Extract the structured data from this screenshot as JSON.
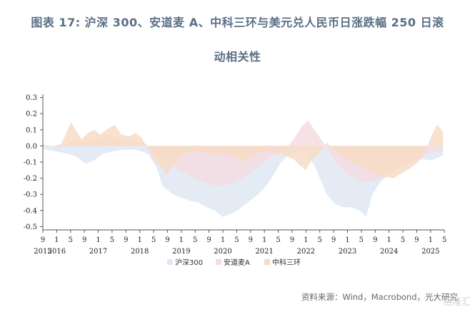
{
  "title_line1": "图表 17:    沪深 300、安道麦 A、中科三环与美元兑人民币日涨跌幅 250 日滚",
  "title_line2": "动相关性",
  "source": "资料来源：Wind，Macrobond，光大研究",
  "watermark": "格隆汇",
  "chart_data": {
    "type": "area",
    "y_ticks": [
      "0.3",
      "0.2",
      "0.1",
      "0.0",
      "-0.1",
      "-0.2",
      "-0.3",
      "-0.4",
      "-0.5"
    ],
    "ylim": [
      -0.52,
      0.32
    ],
    "x_tick_months": [
      "9",
      "1",
      "5",
      "9",
      "1",
      "5",
      "9",
      "1",
      "5",
      "9",
      "1",
      "5",
      "9",
      "1",
      "5",
      "9",
      "1",
      "5",
      "9",
      "1",
      "5",
      "9",
      "1",
      "5",
      "9",
      "1",
      "5",
      "9",
      "1",
      "5"
    ],
    "x_years": [
      "2015",
      "2016",
      "2017",
      "2018",
      "2019",
      "2020",
      "2021",
      "2022",
      "2023",
      "2024",
      "2025"
    ],
    "x_range": [
      2015.667,
      2025.33
    ],
    "legend_position": "bottom",
    "series": [
      {
        "name": "沪深300",
        "color": "#e1e7f3",
        "points": [
          [
            2015.67,
            -0.02
          ],
          [
            2015.9,
            -0.03
          ],
          [
            2016.1,
            -0.04
          ],
          [
            2016.3,
            -0.05
          ],
          [
            2016.5,
            -0.07
          ],
          [
            2016.7,
            -0.11
          ],
          [
            2016.9,
            -0.09
          ],
          [
            2017.1,
            -0.05
          ],
          [
            2017.4,
            -0.03
          ],
          [
            2017.8,
            -0.02
          ],
          [
            2018.0,
            -0.03
          ],
          [
            2018.2,
            -0.05
          ],
          [
            2018.4,
            -0.13
          ],
          [
            2018.55,
            -0.25
          ],
          [
            2018.8,
            -0.3
          ],
          [
            2019.0,
            -0.32
          ],
          [
            2019.2,
            -0.34
          ],
          [
            2019.4,
            -0.35
          ],
          [
            2019.6,
            -0.38
          ],
          [
            2019.8,
            -0.4
          ],
          [
            2020.0,
            -0.44
          ],
          [
            2020.2,
            -0.42
          ],
          [
            2020.4,
            -0.39
          ],
          [
            2020.6,
            -0.35
          ],
          [
            2020.8,
            -0.31
          ],
          [
            2021.0,
            -0.26
          ],
          [
            2021.2,
            -0.19
          ],
          [
            2021.4,
            -0.1
          ],
          [
            2021.6,
            -0.05
          ],
          [
            2021.8,
            -0.03
          ],
          [
            2021.95,
            -0.02
          ],
          [
            2022.2,
            -0.12
          ],
          [
            2022.5,
            -0.3
          ],
          [
            2022.7,
            -0.36
          ],
          [
            2022.9,
            -0.38
          ],
          [
            2023.1,
            -0.38
          ],
          [
            2023.3,
            -0.4
          ],
          [
            2023.45,
            -0.44
          ],
          [
            2023.6,
            -0.3
          ],
          [
            2023.8,
            -0.22
          ],
          [
            2024.0,
            -0.18
          ],
          [
            2024.2,
            -0.15
          ],
          [
            2024.4,
            -0.12
          ],
          [
            2024.6,
            -0.1
          ],
          [
            2024.8,
            -0.08
          ],
          [
            2025.0,
            -0.09
          ],
          [
            2025.2,
            -0.07
          ],
          [
            2025.3,
            -0.06
          ]
        ]
      },
      {
        "name": "安道麦A",
        "color": "#f4dde2",
        "points": [
          [
            2015.67,
            0.01
          ],
          [
            2015.9,
            0.0
          ],
          [
            2016.1,
            -0.01
          ],
          [
            2016.3,
            0.02
          ],
          [
            2016.5,
            0.03
          ],
          [
            2016.7,
            0.02
          ],
          [
            2016.9,
            0.04
          ],
          [
            2017.1,
            0.05
          ],
          [
            2017.3,
            0.07
          ],
          [
            2017.5,
            0.04
          ],
          [
            2017.7,
            0.02
          ],
          [
            2017.9,
            0.03
          ],
          [
            2018.1,
            0.02
          ],
          [
            2018.3,
            -0.02
          ],
          [
            2018.5,
            -0.07
          ],
          [
            2018.7,
            -0.1
          ],
          [
            2018.9,
            -0.15
          ],
          [
            2019.1,
            -0.17
          ],
          [
            2019.3,
            -0.2
          ],
          [
            2019.5,
            -0.22
          ],
          [
            2019.7,
            -0.24
          ],
          [
            2019.9,
            -0.25
          ],
          [
            2020.1,
            -0.24
          ],
          [
            2020.3,
            -0.22
          ],
          [
            2020.5,
            -0.2
          ],
          [
            2020.7,
            -0.16
          ],
          [
            2020.9,
            -0.12
          ],
          [
            2021.1,
            -0.08
          ],
          [
            2021.3,
            -0.05
          ],
          [
            2021.5,
            -0.02
          ],
          [
            2021.7,
            0.04
          ],
          [
            2021.9,
            0.12
          ],
          [
            2022.05,
            0.16
          ],
          [
            2022.2,
            0.1
          ],
          [
            2022.4,
            0.03
          ],
          [
            2022.6,
            -0.05
          ],
          [
            2022.8,
            -0.12
          ],
          [
            2023.0,
            -0.18
          ],
          [
            2023.2,
            -0.2
          ],
          [
            2023.4,
            -0.23
          ],
          [
            2023.6,
            -0.22
          ],
          [
            2023.8,
            -0.2
          ],
          [
            2024.0,
            -0.16
          ],
          [
            2024.2,
            -0.13
          ],
          [
            2024.4,
            -0.11
          ],
          [
            2024.6,
            -0.08
          ],
          [
            2024.8,
            -0.06
          ],
          [
            2025.0,
            -0.04
          ],
          [
            2025.3,
            -0.03
          ]
        ]
      },
      {
        "name": "中科三环",
        "color": "#f7dcc4",
        "points": [
          [
            2015.67,
            0.0
          ],
          [
            2015.9,
            0.0
          ],
          [
            2016.1,
            0.01
          ],
          [
            2016.2,
            0.06
          ],
          [
            2016.35,
            0.15
          ],
          [
            2016.45,
            0.1
          ],
          [
            2016.6,
            0.04
          ],
          [
            2016.75,
            0.08
          ],
          [
            2016.9,
            0.1
          ],
          [
            2017.05,
            0.07
          ],
          [
            2017.25,
            0.11
          ],
          [
            2017.4,
            0.13
          ],
          [
            2017.55,
            0.07
          ],
          [
            2017.75,
            0.06
          ],
          [
            2017.9,
            0.08
          ],
          [
            2018.05,
            0.05
          ],
          [
            2018.2,
            -0.02
          ],
          [
            2018.35,
            -0.09
          ],
          [
            2018.5,
            -0.13
          ],
          [
            2018.65,
            -0.18
          ],
          [
            2018.8,
            -0.12
          ],
          [
            2019.0,
            -0.06
          ],
          [
            2019.2,
            -0.04
          ],
          [
            2019.4,
            -0.03
          ],
          [
            2019.6,
            -0.04
          ],
          [
            2019.8,
            -0.06
          ],
          [
            2020.0,
            -0.05
          ],
          [
            2020.2,
            -0.06
          ],
          [
            2020.4,
            -0.08
          ],
          [
            2020.55,
            -0.1
          ],
          [
            2020.7,
            -0.07
          ],
          [
            2020.9,
            -0.04
          ],
          [
            2021.1,
            -0.03
          ],
          [
            2021.3,
            -0.04
          ],
          [
            2021.5,
            -0.06
          ],
          [
            2021.7,
            -0.08
          ],
          [
            2021.85,
            -0.12
          ],
          [
            2022.0,
            -0.15
          ],
          [
            2022.1,
            -0.1
          ],
          [
            2022.3,
            -0.05
          ],
          [
            2022.5,
            0.02
          ],
          [
            2022.7,
            -0.03
          ],
          [
            2022.9,
            -0.07
          ],
          [
            2023.1,
            -0.1
          ],
          [
            2023.3,
            -0.11
          ],
          [
            2023.5,
            -0.16
          ],
          [
            2023.7,
            -0.18
          ],
          [
            2023.9,
            -0.19
          ],
          [
            2024.1,
            -0.2
          ],
          [
            2024.3,
            -0.17
          ],
          [
            2024.5,
            -0.14
          ],
          [
            2024.7,
            -0.1
          ],
          [
            2024.85,
            -0.05
          ],
          [
            2025.0,
            0.05
          ],
          [
            2025.15,
            0.13
          ],
          [
            2025.3,
            0.09
          ]
        ]
      }
    ]
  }
}
